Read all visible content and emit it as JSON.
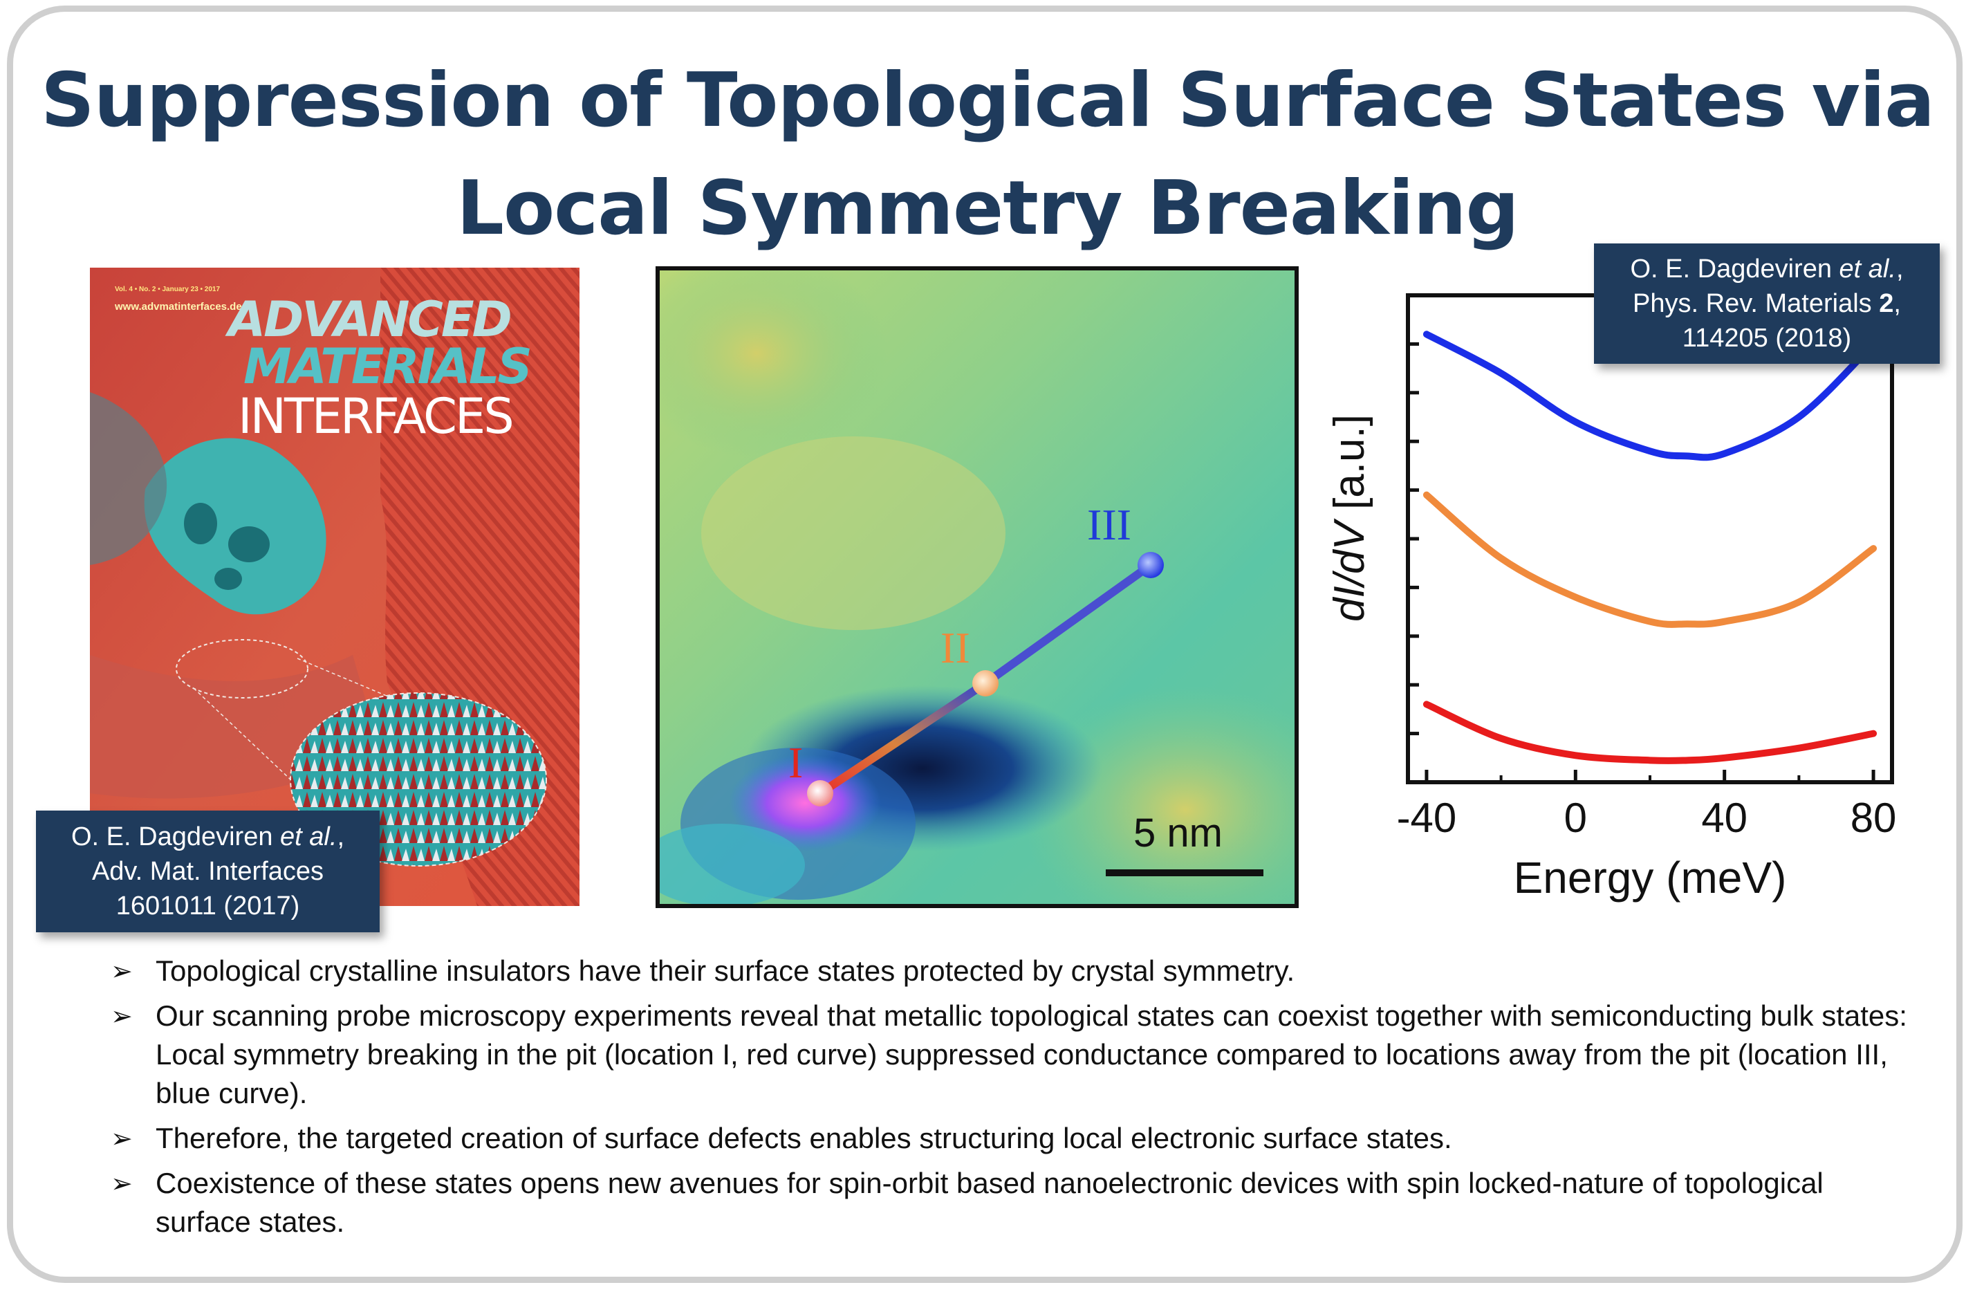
{
  "title": {
    "line1": "Suppression of Topological Surface States via",
    "line2": "Local Symmetry Breaking"
  },
  "cover": {
    "volume": "Vol. 4 • No. 2 • January 23 • 2017",
    "website": "www.advmatinterfaces.de",
    "journal_line1": "ADVANCED",
    "journal_line2": "MATERIALS",
    "journal_line3": "INTERFACES"
  },
  "citation_left": {
    "line1_author": "O. E. Dagdeviren ",
    "line1_etal": "et al.",
    "line1_end": ",",
    "line2": "Adv. Mat. Interfaces",
    "line3": "1601011 (2017)"
  },
  "citation_right": {
    "line1_author": "O. E. Dagdeviren ",
    "line1_etal": "et al.",
    "line1_end": ",",
    "line2_text": "Phys. Rev. Materials ",
    "line2_bold": "2",
    "line2_end": ",",
    "line3": "114205 (2018)"
  },
  "stm_map": {
    "location_labels": [
      "I",
      "II",
      "III"
    ],
    "label_colors": [
      "#e2261c",
      "#f0883a",
      "#1f3ad8"
    ],
    "scale_bar_label": "5 nm"
  },
  "chart_data": {
    "type": "line",
    "xlabel": "Energy (meV)",
    "ylabel_parts": [
      "dI/dV",
      " [a.u.]"
    ],
    "x_ticks": [
      -40,
      0,
      40,
      80
    ],
    "xlim": [
      -45,
      85
    ],
    "ylim": [
      0,
      10
    ],
    "grid": false,
    "series": [
      {
        "color": "#1a2ee8",
        "x": [
          -40,
          -20,
          0,
          20,
          30,
          40,
          60,
          80
        ],
        "y": [
          9.2,
          8.4,
          7.4,
          6.8,
          6.7,
          6.75,
          7.5,
          9.0
        ]
      },
      {
        "color": "#f08a3c",
        "x": [
          -40,
          -20,
          0,
          20,
          30,
          40,
          60,
          80
        ],
        "y": [
          5.9,
          4.6,
          3.8,
          3.3,
          3.25,
          3.3,
          3.7,
          4.8
        ]
      },
      {
        "color": "#e81c1c",
        "x": [
          -40,
          -20,
          0,
          20,
          30,
          40,
          60,
          80
        ],
        "y": [
          1.6,
          0.9,
          0.55,
          0.45,
          0.45,
          0.5,
          0.7,
          1.0
        ]
      }
    ]
  },
  "bullets": [
    "Topological crystalline insulators have their surface states protected by crystal symmetry.",
    "Our scanning probe microscopy experiments reveal that metallic topological states can coexist together with semiconducting bulk states: Local symmetry breaking in the pit (location I, red curve) suppressed conductance compared to locations away from the pit (location III, blue curve).",
    "Therefore, the targeted creation of surface defects enables structuring local electronic surface states.",
    "Coexistence of these states opens new avenues for spin-orbit based nanoelectronic devices with spin locked-nature of topological surface states."
  ],
  "bullet_marker": "➢"
}
